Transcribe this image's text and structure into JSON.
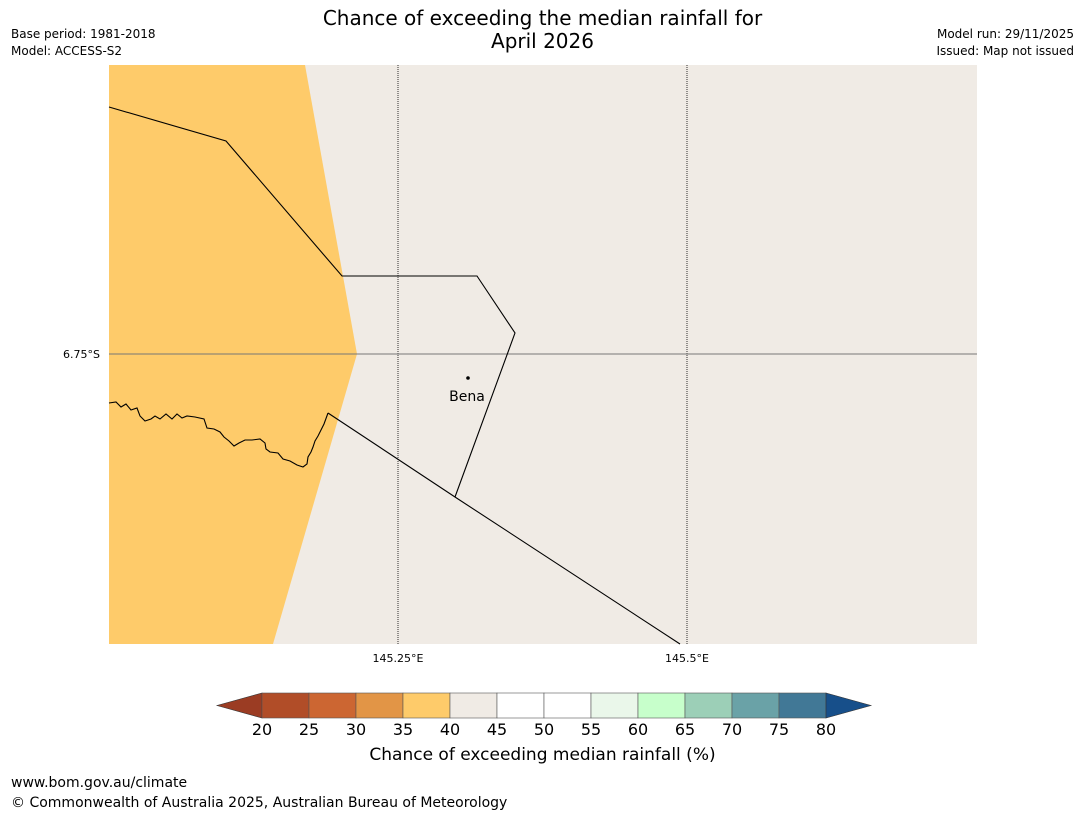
{
  "title": {
    "line1": "Chance of exceeding the median rainfall for",
    "line2": "April 2026"
  },
  "meta_left": {
    "base_period": "Base period: 1981-2018",
    "model": "Model: ACCESS-S2"
  },
  "meta_right": {
    "model_run": "Model run: 29/11/2025",
    "issued": "Issued: Map not issued"
  },
  "map": {
    "lat_label": "6.75°S",
    "lon_labels": [
      "145.25°E",
      "145.5°E"
    ],
    "town": {
      "name": "Bena"
    },
    "regions": [
      {
        "category": "35-40",
        "color": "#fecb6a"
      },
      {
        "category": "40-45",
        "color": "#f0ebe5"
      }
    ]
  },
  "colorbar": {
    "label": "Chance of exceeding median rainfall (%)",
    "ticks": [
      "20",
      "25",
      "30",
      "35",
      "40",
      "45",
      "50",
      "55",
      "60",
      "65",
      "70",
      "75",
      "80"
    ],
    "under_color": "#9b3c23",
    "over_color": "#174f8a",
    "colors": [
      "#b14d28",
      "#cc6632",
      "#e29546",
      "#fecb6a",
      "#f0ebe5",
      "#ffffff",
      "#ffffff",
      "#eaf7ea",
      "#c7ffcb",
      "#9ccfb7",
      "#6aa2a7",
      "#417896"
    ]
  },
  "footer": {
    "url": "www.bom.gov.au/climate",
    "copyright": "© Commonwealth of Australia 2025, Australian Bureau of Meteorology"
  }
}
